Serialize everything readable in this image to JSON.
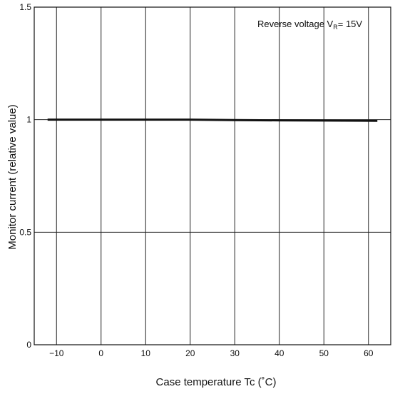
{
  "chart_data": {
    "type": "line",
    "title": "",
    "xlabel": "Case temperature Tc (˚C)",
    "ylabel": "Monitor current (relative value)",
    "xlim": [
      -15,
      65
    ],
    "ylim": [
      0,
      1.5
    ],
    "x_ticks": [
      -10,
      0,
      10,
      20,
      30,
      40,
      50,
      60
    ],
    "x_tick_labels": [
      "−10",
      "0",
      "10",
      "20",
      "30",
      "40",
      "50",
      "60"
    ],
    "y_ticks": [
      0,
      0.5,
      1,
      1.5
    ],
    "y_tick_labels": [
      "0",
      "0.5",
      "1",
      "1.5"
    ],
    "grid": true,
    "annotation": {
      "prefix": "Reverse voltage V",
      "subscript": "R",
      "suffix": "= 15V"
    },
    "series": [
      {
        "x": [
          -12,
          0,
          10,
          20,
          30,
          40,
          50,
          62
        ],
        "y": [
          1.0,
          1.0,
          1.0,
          1.0,
          0.998,
          0.997,
          0.996,
          0.995
        ]
      }
    ],
    "colors": {
      "line": "#111111",
      "grid": "#222222",
      "axis": "#111111"
    }
  }
}
